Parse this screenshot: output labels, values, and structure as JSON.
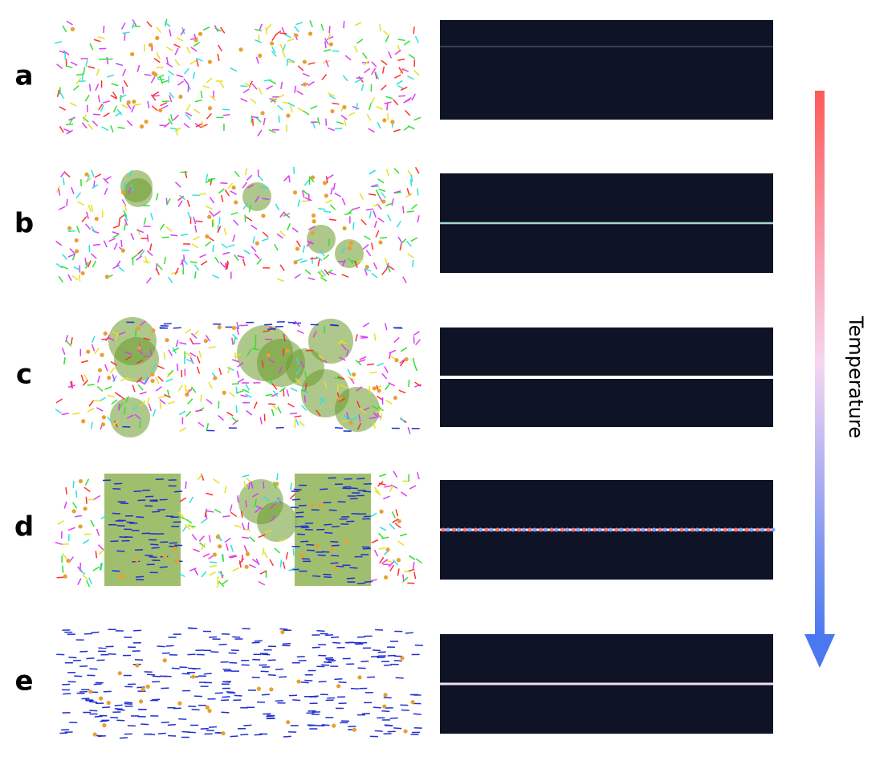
{
  "panels": [
    {
      "label": "a"
    },
    {
      "label": "b"
    },
    {
      "label": "c"
    },
    {
      "label": "d"
    },
    {
      "label": "e"
    }
  ],
  "axis": {
    "label": "Temperature"
  }
}
